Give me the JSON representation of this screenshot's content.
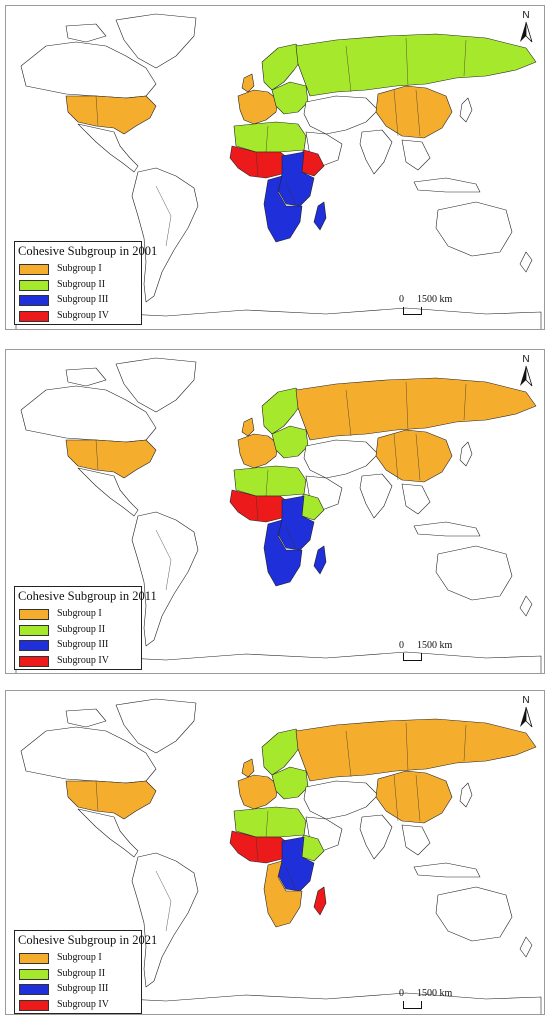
{
  "maps": [
    {
      "legend_title": "Cohesive Subgroup in 2001",
      "colors": {
        "north_america": "#f5ad2e",
        "europe_west": "#f5ad2e",
        "europe_north": "#a6e82b",
        "russia": "#a6e82b",
        "china": "#f5ad2e",
        "north_africa": "#a6e82b",
        "west_africa": "#ec1a1a",
        "east_africa": "#1f2fd9",
        "southern_africa": "#1f2fd9",
        "horn_of_africa": "#ec1a1a",
        "madagascar": "#1f2fd9"
      }
    },
    {
      "legend_title": "Cohesive Subgroup in 2011",
      "colors": {
        "north_america": "#f5ad2e",
        "europe_west": "#f5ad2e",
        "europe_north": "#a6e82b",
        "russia": "#f5ad2e",
        "china": "#f5ad2e",
        "north_africa": "#a6e82b",
        "west_africa": "#ec1a1a",
        "east_africa": "#1f2fd9",
        "southern_africa": "#1f2fd9",
        "horn_of_africa": "#a6e82b",
        "madagascar": "#1f2fd9"
      }
    },
    {
      "legend_title": "Cohesive Subgroup in 2021",
      "colors": {
        "north_america": "#f5ad2e",
        "europe_west": "#f5ad2e",
        "europe_north": "#a6e82b",
        "russia": "#f5ad2e",
        "china": "#f5ad2e",
        "north_africa": "#a6e82b",
        "west_africa": "#ec1a1a",
        "east_africa": "#1f2fd9",
        "southern_africa": "#f5ad2e",
        "horn_of_africa": "#a6e82b",
        "madagascar": "#ec1a1a"
      }
    }
  ],
  "legend_items": [
    {
      "label": "Subgroup I",
      "color": "#f5ad2e"
    },
    {
      "label": "Subgroup II",
      "color": "#a6e82b"
    },
    {
      "label": "Subgroup III",
      "color": "#1f2fd9"
    },
    {
      "label": "Subgroup IV",
      "color": "#ec1a1a"
    }
  ],
  "north_label": "N",
  "scale": {
    "zero": "0",
    "distance": "1500 km"
  }
}
